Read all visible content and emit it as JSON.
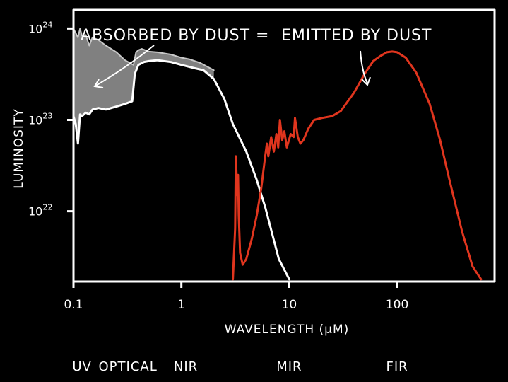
{
  "chart_data": {
    "type": "line",
    "xlabel": "WAVELENGTH (μM)",
    "ylabel": "LUMINOSITY",
    "x_scale": "log",
    "y_scale": "log",
    "xlim": [
      0.1,
      800
    ],
    "ylim": [
      1.7e+21,
      1.6e+24
    ],
    "x_ticks": [
      {
        "value": 0.1,
        "label": "0.1"
      },
      {
        "value": 1,
        "label": "1"
      },
      {
        "value": 10,
        "label": "10"
      },
      {
        "value": 100,
        "label": "100"
      }
    ],
    "y_ticks": [
      {
        "value": 1e+22,
        "base": "10",
        "exp": "22"
      },
      {
        "value": 1e+23,
        "base": "10",
        "exp": "23"
      },
      {
        "value": 1e+24,
        "base": "10",
        "exp": "24"
      }
    ],
    "annotations": [
      {
        "text": "ABSORBED BY DUST =",
        "target_x": 0.13,
        "target_y": 4.6e+23
      },
      {
        "text": "EMITTED BY DUST",
        "target_x": 50,
        "target_y": 5.2e+23
      }
    ],
    "bands": [
      {
        "label": "UV",
        "x": 0.12
      },
      {
        "label": "OPTICAL",
        "x": 0.32
      },
      {
        "label": "NIR",
        "x": 1.1
      },
      {
        "label": "MIR",
        "x": 10
      },
      {
        "label": "FIR",
        "x": 100
      }
    ],
    "colors": {
      "background": "#000000",
      "stellar": "#ffffff",
      "dust": "#e0351e",
      "absorbed_fill": "#808080",
      "frame": "#ffffff"
    },
    "grid": false,
    "series": [
      {
        "key": "intrinsic",
        "color": "#c8c8c8",
        "x": [
          0.1,
          0.11,
          0.115,
          0.12,
          0.13,
          0.14,
          0.15,
          0.17,
          0.2,
          0.25,
          0.3,
          0.36,
          0.38,
          0.4,
          0.43,
          0.5,
          0.6,
          0.8,
          1.0,
          1.2,
          1.5,
          2.0
        ],
        "y": [
          1e+24,
          8e+23,
          1e+24,
          8.3e+23,
          8.5e+23,
          6.5e+23,
          8e+23,
          7.5e+23,
          6.5e+23,
          5.5e+23,
          4.5e+23,
          4e+23,
          5.5e+23,
          5.8e+23,
          6e+23,
          5.6e+23,
          5.5e+23,
          5.2e+23,
          4.8e+23,
          4.6e+23,
          4.2e+23,
          3.5e+23
        ]
      },
      {
        "key": "stellar",
        "color": "#ffffff",
        "x": [
          0.1,
          0.105,
          0.11,
          0.115,
          0.12,
          0.13,
          0.14,
          0.15,
          0.17,
          0.2,
          0.25,
          0.3,
          0.35,
          0.37,
          0.4,
          0.45,
          0.5,
          0.6,
          0.8,
          1.0,
          1.3,
          1.6,
          2.0,
          2.5,
          3.0,
          4.0,
          5.0,
          6.0,
          7.0,
          8.0,
          10.0
        ],
        "y": [
          1.1e+23,
          9e+22,
          5.5e+22,
          1.15e+23,
          1.1e+23,
          1.2e+23,
          1.15e+23,
          1.3e+23,
          1.35e+23,
          1.3e+23,
          1.4e+23,
          1.5e+23,
          1.6e+23,
          3.2e+23,
          4e+23,
          4.3e+23,
          4.4e+23,
          4.5e+23,
          4.3e+23,
          4e+23,
          3.7e+23,
          3.5e+23,
          2.8e+23,
          1.7e+23,
          9e+22,
          4.5e+22,
          2.2e+22,
          1.1e+22,
          5.5e+21,
          3e+21,
          1.8e+21
        ]
      },
      {
        "key": "dust",
        "color": "#e0351e",
        "x": [
          3.0,
          3.15,
          3.2,
          3.3,
          3.35,
          3.4,
          3.5,
          3.7,
          4.0,
          4.5,
          5.0,
          5.5,
          5.9,
          6.2,
          6.4,
          6.8,
          7.2,
          7.6,
          7.9,
          8.2,
          8.6,
          9.0,
          9.5,
          10.3,
          11.0,
          11.3,
          12.0,
          12.7,
          13.5,
          15.0,
          17.0,
          20.0,
          25.0,
          30.0,
          40.0,
          50.0,
          60.0,
          70.0,
          80.0,
          90.0,
          100.0,
          120.0,
          150.0,
          200.0,
          250.0,
          300.0,
          400.0,
          500.0,
          600.0
        ],
        "y": [
          1.8e+21,
          6.5e+21,
          4e+22,
          1.5e+22,
          2.5e+22,
          9e+21,
          3.5e+21,
          2.6e+21,
          3e+21,
          5e+21,
          9e+21,
          1.8e+22,
          3.5e+22,
          5.5e+22,
          4e+22,
          6.5e+22,
          4.5e+22,
          7e+22,
          5e+22,
          1e+23,
          6e+22,
          7.5e+22,
          5e+22,
          7e+22,
          6.5e+22,
          1.05e+23,
          6.5e+22,
          5.5e+22,
          6e+22,
          8e+22,
          1e+23,
          1.05e+23,
          1.1e+23,
          1.25e+23,
          2e+23,
          3.2e+23,
          4.4e+23,
          5e+23,
          5.5e+23,
          5.6e+23,
          5.5e+23,
          4.8e+23,
          3.3e+23,
          1.5e+23,
          6e+22,
          2.4e+22,
          6e+21,
          2.5e+21,
          1.8e+21
        ]
      }
    ]
  }
}
